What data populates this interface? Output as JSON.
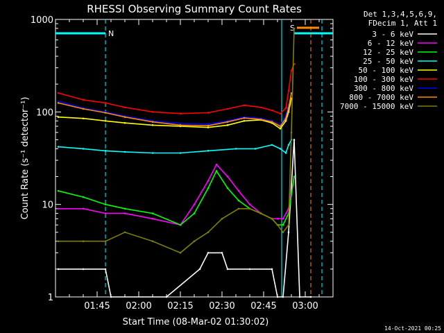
{
  "chart_data": {
    "type": "line",
    "title": "RHESSI Observing Summary Count Rates",
    "xlabel": "Start Time (08-Mar-02 01:30:02)",
    "ylabel": "Count Rate (s⁻¹ detector⁻¹)",
    "yscale": "log",
    "ylim": [
      1,
      1000
    ],
    "xlim_minutes": [
      0,
      100
    ],
    "x_tick_labels": [
      "01:45",
      "02:00",
      "02:15",
      "02:30",
      "02:45",
      "03:00"
    ],
    "x_tick_minutes": [
      15,
      30,
      45,
      60,
      75,
      90
    ],
    "y_tick_labels": [
      "1",
      "10",
      "100",
      "1000"
    ],
    "y_tick_values": [
      1,
      10,
      100,
      1000
    ],
    "legend_header": [
      "Det 1,3,4,5,6,9,",
      "FDecim 1, Att 1"
    ],
    "footer": "14-Oct-2021 00:25",
    "annotations": [
      {
        "text": "N",
        "minutes": 18
      },
      {
        "text": "S",
        "minutes": 84
      }
    ],
    "series": [
      {
        "name": "3 - 6 keV",
        "color": "#ffffff",
        "x": [
          1,
          10,
          18,
          20,
          40,
          52,
          55,
          60,
          62,
          70,
          78,
          80,
          82,
          84,
          86,
          88,
          92
        ],
        "y": [
          2,
          2,
          2,
          1,
          1,
          2,
          3,
          3,
          2,
          2,
          2,
          1,
          1,
          5,
          50,
          1,
          1
        ]
      },
      {
        "name": "6 - 12 keV",
        "color": "#ff00ff",
        "x": [
          1,
          10,
          18,
          25,
          35,
          45,
          50,
          55,
          58,
          62,
          66,
          70,
          74,
          78,
          80,
          82,
          84,
          86
        ],
        "y": [
          9,
          9,
          8,
          8,
          7,
          6,
          10,
          18,
          27,
          20,
          14,
          10,
          8,
          7,
          7,
          7,
          9,
          20
        ]
      },
      {
        "name": "12 - 25 keV",
        "color": "#00ff00",
        "x": [
          1,
          10,
          18,
          25,
          35,
          45,
          50,
          55,
          58,
          62,
          66,
          70,
          74,
          78,
          80,
          82,
          84,
          86
        ],
        "y": [
          14,
          12,
          10,
          9,
          8,
          6,
          8,
          15,
          23,
          15,
          11,
          9,
          8,
          7,
          6,
          6,
          8,
          20
        ]
      },
      {
        "name": "25 - 50 keV",
        "color": "#00ffff",
        "x": [
          1,
          10,
          18,
          25,
          35,
          45,
          55,
          65,
          72,
          78,
          81,
          83,
          84,
          85
        ],
        "y": [
          42,
          40,
          38,
          37,
          36,
          36,
          38,
          40,
          40,
          44,
          40,
          36,
          44,
          50
        ]
      },
      {
        "name": "50 - 100 keV",
        "color": "#ffff00",
        "x": [
          1,
          10,
          18,
          25,
          35,
          45,
          55,
          62,
          68,
          74,
          78,
          81,
          83,
          84,
          85
        ],
        "y": [
          88,
          85,
          80,
          76,
          72,
          70,
          68,
          72,
          80,
          82,
          76,
          66,
          80,
          100,
          140
        ]
      },
      {
        "name": "100 - 300 keV",
        "color": "#ff0000",
        "x": [
          1,
          10,
          18,
          25,
          35,
          45,
          55,
          62,
          68,
          74,
          78,
          81,
          83,
          84,
          85,
          86
        ],
        "y": [
          160,
          135,
          125,
          112,
          100,
          96,
          98,
          108,
          118,
          112,
          104,
          96,
          110,
          170,
          280,
          330
        ]
      },
      {
        "name": "300 - 800 keV",
        "color": "#0000ff",
        "x": [
          1,
          10,
          18,
          25,
          35,
          45,
          55,
          62,
          68,
          74,
          78,
          81,
          83,
          84
        ],
        "y": [
          130,
          110,
          100,
          90,
          80,
          75,
          74,
          80,
          88,
          85,
          80,
          72,
          90,
          120
        ]
      },
      {
        "name": "800 - 7000 keV",
        "color": "#ff8c00",
        "x": [
          1,
          10,
          18,
          25,
          35,
          45,
          55,
          62,
          68,
          74,
          78,
          81,
          83,
          84,
          85
        ],
        "y": [
          125,
          108,
          98,
          88,
          78,
          72,
          71,
          78,
          86,
          83,
          78,
          70,
          85,
          110,
          160
        ]
      },
      {
        "name": "7000 - 15000 keV",
        "color": "#808000",
        "x": [
          1,
          10,
          18,
          25,
          35,
          45,
          50,
          55,
          60,
          66,
          70,
          74,
          78,
          80,
          82,
          84,
          85,
          86
        ],
        "y": [
          4,
          4,
          4,
          5,
          4,
          3,
          4,
          5,
          7,
          9,
          9,
          8,
          7,
          6,
          5,
          6,
          60,
          800
        ]
      }
    ]
  }
}
